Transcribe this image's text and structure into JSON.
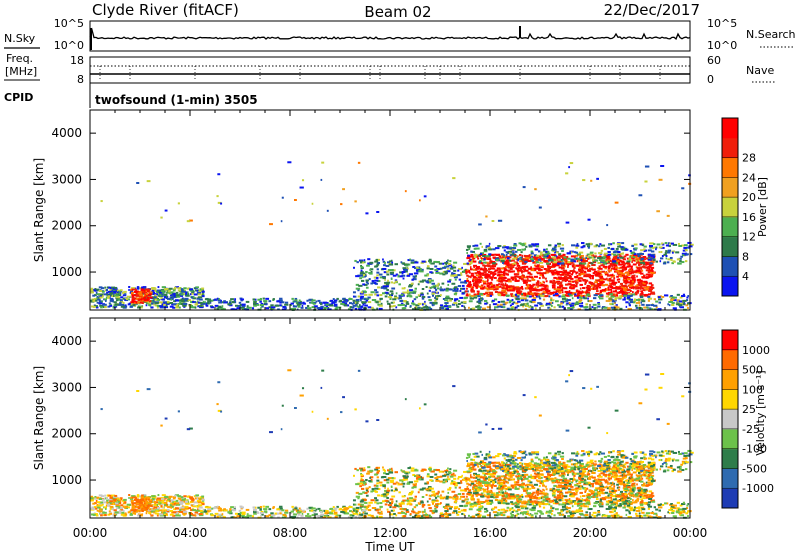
{
  "header": {
    "station": "Clyde River (fitACF)",
    "beam": "Beam 02",
    "date": "22/Dec/2017"
  },
  "noise_panel": {
    "left_label": "N.Sky",
    "left_ticks": [
      "10^5",
      "10^0"
    ],
    "right_ticks": [
      "10^5",
      "10^0"
    ],
    "right_label": "N.Search"
  },
  "freq_panel": {
    "left_label_1": "Freq.",
    "left_label_2": "[MHz]",
    "left_ticks": [
      "18",
      "8"
    ],
    "right_ticks": [
      "60",
      "0"
    ],
    "right_label": "Nave",
    "cpid_label": "CPID",
    "cpid_text": "twofsound (1-min) 3505"
  },
  "chart_data": [
    {
      "type": "heatmap",
      "title": "",
      "quantity": "power",
      "xlabel": "",
      "ylabel": "Slant Range [km]",
      "ylim": [
        180,
        4500
      ],
      "yticks": [
        "1000",
        "2000",
        "3000",
        "4000"
      ],
      "xlim": [
        0,
        24
      ],
      "colorbar": {
        "label": "Power [dB]",
        "ticks": [
          "4",
          "8",
          "12",
          "16",
          "20",
          "24",
          "28"
        ],
        "colors": [
          "#0a14f0",
          "#1e50b4",
          "#2e7a4a",
          "#4caf50",
          "#c8d23c",
          "#f0a020",
          "#ff7800",
          "#f01e0a",
          "#ff0000"
        ]
      }
    },
    {
      "type": "heatmap",
      "title": "",
      "quantity": "velocity",
      "xlabel": "Time UT",
      "ylabel": "Slant Range [km]",
      "ylim": [
        180,
        4500
      ],
      "yticks": [
        "1000",
        "2000",
        "3000",
        "4000"
      ],
      "xlim": [
        0,
        24
      ],
      "xticks": [
        "00:00",
        "04:00",
        "08:00",
        "12:00",
        "16:00",
        "20:00",
        "00:00"
      ],
      "colorbar": {
        "label": "Velocity [m s⁻¹]",
        "ticks": [
          "1000",
          "500",
          "100",
          "25",
          "-25",
          "-100",
          "-500",
          "-1000"
        ],
        "colors": [
          "#1e3cb4",
          "#2f6bb0",
          "#2e7d4a",
          "#6cc24a",
          "#c8c8c8",
          "#ffd700",
          "#ffa000",
          "#ff6a00",
          "#ff0000"
        ]
      }
    }
  ]
}
